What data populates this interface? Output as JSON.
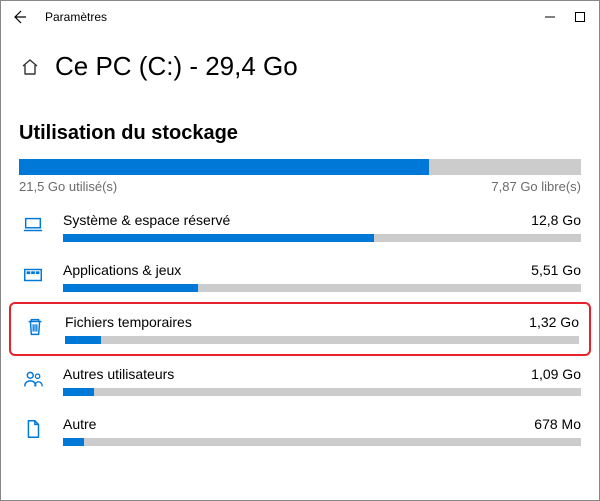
{
  "titlebar": {
    "title": "Paramètres"
  },
  "header": {
    "title": "Ce PC (C:) - 29,4 Go"
  },
  "section_title": "Utilisation du stockage",
  "overall": {
    "percent": 73,
    "used_label": "21,5 Go utilisé(s)",
    "free_label": "7,87 Go libre(s)",
    "used_color": "#0078d7",
    "free_color": "#cccccc"
  },
  "categories": [
    {
      "icon": "laptop",
      "label": "Système & espace réservé",
      "size": "12,8 Go",
      "percent": 60,
      "highlight": false
    },
    {
      "icon": "apps",
      "label": "Applications & jeux",
      "size": "5,51 Go",
      "percent": 26,
      "highlight": false
    },
    {
      "icon": "trash",
      "label": "Fichiers temporaires",
      "size": "1,32 Go",
      "percent": 7,
      "highlight": true
    },
    {
      "icon": "users",
      "label": "Autres utilisateurs",
      "size": "1,09 Go",
      "percent": 6,
      "highlight": false
    },
    {
      "icon": "doc",
      "label": "Autre",
      "size": "678 Mo",
      "percent": 4,
      "highlight": false
    }
  ],
  "colors": {
    "accent": "#0078d7",
    "bar_bg": "#cccccc",
    "highlight_border": "#e6232a"
  }
}
